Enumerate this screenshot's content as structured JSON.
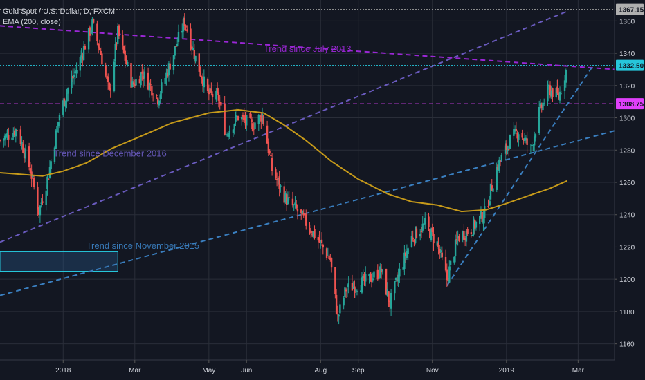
{
  "legend": {
    "symbol": "Gold Spot / U.S. Dollar, D, FXCM",
    "indicator": "EMA (200, close)"
  },
  "colors": {
    "background": "#131722",
    "grid": "#2a2e39",
    "up": "#26a69a",
    "down": "#ef5350",
    "ema": "#c69a1a",
    "trend2013": "#9b27d6",
    "trend2016": "#6a5bbf",
    "trend2015": "#3a7fc0",
    "level_magenta": "#e040fb",
    "level_cyan": "#26c6da",
    "axis_text": "#d1d4dc"
  },
  "chart_data": {
    "type": "candlestick",
    "title": "Gold Spot / U.S. Dollar, D, FXCM",
    "indicator": "EMA (200, close)",
    "ylim": [
      1150,
      1373
    ],
    "y_ticks": [
      1160,
      1180,
      1200,
      1220,
      1240,
      1260,
      1280,
      1300,
      1320,
      1340,
      1360
    ],
    "x_range": [
      "2017-11-10",
      "2019-03-31"
    ],
    "x_ticks": [
      {
        "date": "2018-01-01",
        "label": "2018"
      },
      {
        "date": "2018-03-01",
        "label": "Mar"
      },
      {
        "date": "2018-05-01",
        "label": "May"
      },
      {
        "date": "2018-06-01",
        "label": "Jun"
      },
      {
        "date": "2018-08-01",
        "label": "Aug"
      },
      {
        "date": "2018-09-01",
        "label": "Sep"
      },
      {
        "date": "2018-11-01",
        "label": "Nov"
      },
      {
        "date": "2019-01-01",
        "label": "2019"
      },
      {
        "date": "2019-03-01",
        "label": "Mar"
      }
    ],
    "close_path": [
      [
        "2017-11-10",
        1286
      ],
      [
        "2017-11-24",
        1293
      ],
      [
        "2017-12-05",
        1268
      ],
      [
        "2017-12-12",
        1242
      ],
      [
        "2017-12-20",
        1265
      ],
      [
        "2017-12-29",
        1302
      ],
      [
        "2018-01-05",
        1318
      ],
      [
        "2018-01-12",
        1330
      ],
      [
        "2018-01-25",
        1358
      ],
      [
        "2018-02-01",
        1340
      ],
      [
        "2018-02-08",
        1315
      ],
      [
        "2018-02-15",
        1353
      ],
      [
        "2018-02-27",
        1320
      ],
      [
        "2018-03-07",
        1328
      ],
      [
        "2018-03-20",
        1312
      ],
      [
        "2018-04-02",
        1340
      ],
      [
        "2018-04-11",
        1360
      ],
      [
        "2018-04-20",
        1337
      ],
      [
        "2018-04-30",
        1315
      ],
      [
        "2018-05-09",
        1312
      ],
      [
        "2018-05-15",
        1290
      ],
      [
        "2018-05-25",
        1301
      ],
      [
        "2018-06-05",
        1295
      ],
      [
        "2018-06-14",
        1302
      ],
      [
        "2018-06-22",
        1268
      ],
      [
        "2018-07-03",
        1250
      ],
      [
        "2018-07-13",
        1242
      ],
      [
        "2018-07-23",
        1232
      ],
      [
        "2018-08-01",
        1222
      ],
      [
        "2018-08-09",
        1212
      ],
      [
        "2018-08-15",
        1176
      ],
      [
        "2018-08-22",
        1194
      ],
      [
        "2018-09-05",
        1198
      ],
      [
        "2018-09-20",
        1205
      ],
      [
        "2018-09-27",
        1185
      ],
      [
        "2018-10-05",
        1204
      ],
      [
        "2018-10-15",
        1226
      ],
      [
        "2018-10-26",
        1234
      ],
      [
        "2018-11-05",
        1222
      ],
      [
        "2018-11-13",
        1200
      ],
      [
        "2018-11-22",
        1226
      ],
      [
        "2018-12-03",
        1231
      ],
      [
        "2018-12-14",
        1241
      ],
      [
        "2018-12-24",
        1269
      ],
      [
        "2019-01-04",
        1286
      ],
      [
        "2019-01-11",
        1292
      ],
      [
        "2019-01-21",
        1280
      ],
      [
        "2019-01-28",
        1303
      ],
      [
        "2019-02-05",
        1318
      ],
      [
        "2019-02-13",
        1313
      ],
      [
        "2019-02-20",
        1332
      ]
    ],
    "ema_200": [
      [
        "2017-11-10",
        1266
      ],
      [
        "2017-12-15",
        1264
      ],
      [
        "2018-01-01",
        1267
      ],
      [
        "2018-01-20",
        1272
      ],
      [
        "2018-02-10",
        1281
      ],
      [
        "2018-03-01",
        1287
      ],
      [
        "2018-04-01",
        1297
      ],
      [
        "2018-05-01",
        1303
      ],
      [
        "2018-05-25",
        1305
      ],
      [
        "2018-06-15",
        1303
      ],
      [
        "2018-07-01",
        1296
      ],
      [
        "2018-07-20",
        1286
      ],
      [
        "2018-08-10",
        1273
      ],
      [
        "2018-09-01",
        1262
      ],
      [
        "2018-09-25",
        1253
      ],
      [
        "2018-10-15",
        1248
      ],
      [
        "2018-11-05",
        1246
      ],
      [
        "2018-11-25",
        1242
      ],
      [
        "2018-12-15",
        1243
      ],
      [
        "2019-01-01",
        1247
      ],
      [
        "2019-01-20",
        1252
      ],
      [
        "2019-02-05",
        1256
      ],
      [
        "2019-02-20",
        1261
      ]
    ],
    "horizontal_levels": [
      {
        "value": 1367.15,
        "label": "1367.15",
        "style": "dotted",
        "color": "#9e9e9e"
      },
      {
        "value": 1332.5,
        "label": "1332.50",
        "style": "dotted",
        "color": "#26c6da"
      },
      {
        "value": 1308.75,
        "label": "1308.75",
        "style": "dashed",
        "color": "#e040fb"
      }
    ],
    "trendlines": [
      {
        "label": "Trend since July 2013",
        "color": "#9b27d6",
        "from": [
          "2017-11-10",
          1357
        ],
        "to": [
          "2019-03-31",
          1330
        ]
      },
      {
        "label": "Trend since December 2016",
        "color": "#6a5bbf",
        "from": [
          "2017-11-10",
          1223
        ],
        "to": [
          "2019-02-20",
          1366
        ]
      },
      {
        "label": "Trend since November 2015",
        "color": "#3a7fc0",
        "from": [
          "2017-11-10",
          1190
        ],
        "to": [
          "2019-03-31",
          1292
        ]
      },
      {
        "label": "",
        "color": "#3a7fc0",
        "from": [
          "2018-11-13",
          1196
        ],
        "to": [
          "2019-03-13",
          1332
        ]
      }
    ],
    "annotations": [
      {
        "text": "Trend since July 2013",
        "at": [
          "2018-06-15",
          1341
        ],
        "color": "#9b27d6"
      },
      {
        "text": "Trend since December 2016",
        "at": [
          "2017-12-24",
          1276
        ],
        "color": "#6a5bbf"
      },
      {
        "text": "Trend since November 2015",
        "at": [
          "2018-01-20",
          1219
        ],
        "color": "#3a7fc0"
      }
    ],
    "rectangle": {
      "from": [
        "2017-11-10",
        1217
      ],
      "to": [
        "2018-02-15",
        1205
      ],
      "color": "#3a7fc0"
    }
  }
}
